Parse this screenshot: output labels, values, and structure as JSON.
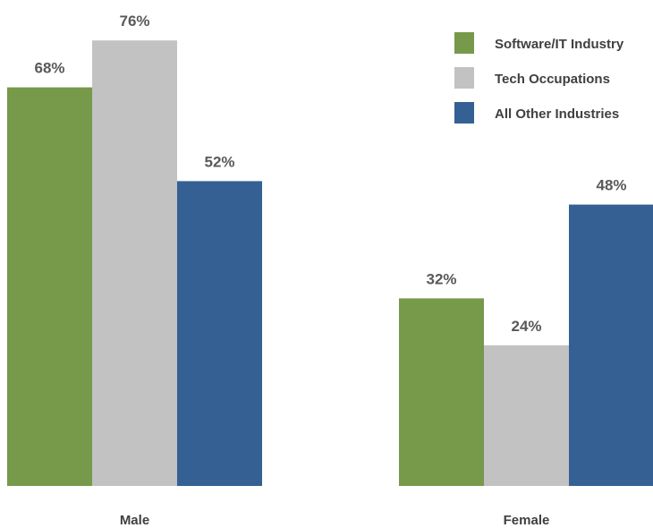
{
  "chart_data": {
    "type": "bar",
    "categories": [
      "Male",
      "Female"
    ],
    "series": [
      {
        "name": "Software/IT Industry",
        "color": "#76994a",
        "values": [
          68,
          32
        ],
        "labels": [
          "68%",
          "32%"
        ]
      },
      {
        "name": "Tech Occupations",
        "color": "#c2c2c2",
        "values": [
          76,
          24
        ],
        "labels": [
          "76%",
          "24%"
        ]
      },
      {
        "name": "All Other Industries",
        "color": "#346094",
        "values": [
          52,
          48
        ],
        "labels": [
          "52%",
          "48%"
        ]
      }
    ],
    "unit": "%",
    "ylim": [
      0,
      100
    ],
    "legend_position": "top-right",
    "grid": false
  }
}
